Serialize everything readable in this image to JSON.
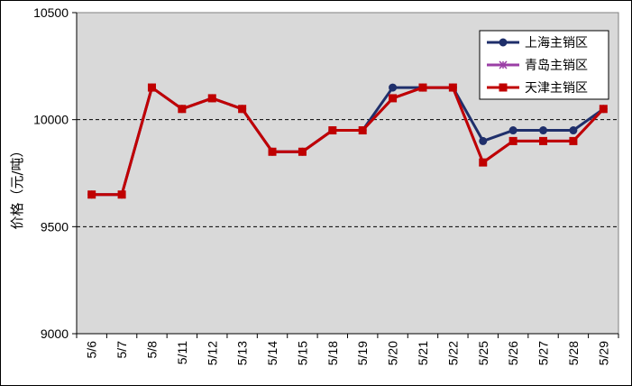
{
  "chart_data": {
    "type": "line",
    "ylabel": "价格（元/吨）",
    "ylim": [
      9000,
      10500
    ],
    "yticks": [
      9000,
      9500,
      10000,
      10500
    ],
    "gridlines": [
      9500,
      10000
    ],
    "grid_style": "dashed",
    "plot_background": "#d9d9d9",
    "legend_position": "top-right",
    "categories": [
      "5/6",
      "5/7",
      "5/8",
      "5/11",
      "5/12",
      "5/13",
      "5/14",
      "5/15",
      "5/18",
      "5/19",
      "5/20",
      "5/21",
      "5/22",
      "5/25",
      "5/26",
      "5/27",
      "5/28",
      "5/29"
    ],
    "series": [
      {
        "name": "上海主销区",
        "color": "#1f2f6b",
        "marker": "circle",
        "values": [
          9650,
          9650,
          10150,
          10050,
          10100,
          10050,
          9850,
          9850,
          9950,
          9950,
          10150,
          10150,
          10150,
          9900,
          9950,
          9950,
          9950,
          10050
        ]
      },
      {
        "name": "青岛主销区",
        "color": "#9b3fa6",
        "marker": "asterisk",
        "values": [
          9650,
          9650,
          10150,
          10050,
          10100,
          10050,
          9850,
          9850,
          9950,
          9950,
          10100,
          10150,
          10150,
          9800,
          9900,
          9900,
          9900,
          10050
        ]
      },
      {
        "name": "天津主销区",
        "color": "#c00000",
        "marker": "square",
        "values": [
          9650,
          9650,
          10150,
          10050,
          10100,
          10050,
          9850,
          9850,
          9950,
          9950,
          10100,
          10150,
          10150,
          9800,
          9900,
          9900,
          9900,
          10050
        ]
      }
    ]
  }
}
